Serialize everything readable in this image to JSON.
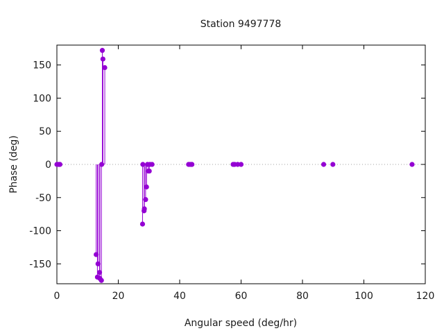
{
  "chart_data": {
    "type": "scatter",
    "title": "Station 9497778",
    "xlabel": "Angular speed (deg/hr)",
    "ylabel": "Phase (deg)",
    "xlim": [
      0,
      120
    ],
    "ylim": [
      -180,
      180
    ],
    "xticks": [
      0,
      20,
      40,
      60,
      80,
      100,
      120
    ],
    "yticks": [
      -150,
      -100,
      -50,
      0,
      50,
      100,
      150
    ],
    "grid": false,
    "legend": "none",
    "zero_line": "dotted",
    "marker_color": "#9400d3",
    "series": [
      {
        "style": "impulses-with-points",
        "points": [
          [
            0.0,
            0
          ],
          [
            0.5,
            0
          ],
          [
            0.8,
            0
          ],
          [
            1.0,
            0
          ],
          [
            12.8,
            -136
          ],
          [
            13.2,
            -170
          ],
          [
            13.4,
            -150
          ],
          [
            13.9,
            -163
          ],
          [
            14.0,
            -172
          ],
          [
            14.5,
            -175
          ],
          [
            14.6,
            0
          ],
          [
            14.8,
            172
          ],
          [
            15.0,
            159
          ],
          [
            15.6,
            146
          ],
          [
            27.9,
            -90
          ],
          [
            28.0,
            0
          ],
          [
            28.4,
            -70
          ],
          [
            28.5,
            -67
          ],
          [
            28.9,
            -53
          ],
          [
            29.2,
            -34
          ],
          [
            29.5,
            0
          ],
          [
            29.8,
            -10
          ],
          [
            30.1,
            -10
          ],
          [
            30.3,
            0
          ],
          [
            31.0,
            0
          ],
          [
            42.9,
            0
          ],
          [
            43.4,
            0
          ],
          [
            43.9,
            0
          ],
          [
            44.0,
            0
          ],
          [
            57.4,
            0
          ],
          [
            57.9,
            0
          ],
          [
            58.9,
            0
          ],
          [
            60.0,
            0
          ],
          [
            86.9,
            0
          ],
          [
            89.9,
            0
          ],
          [
            115.7,
            0
          ]
        ]
      }
    ]
  }
}
